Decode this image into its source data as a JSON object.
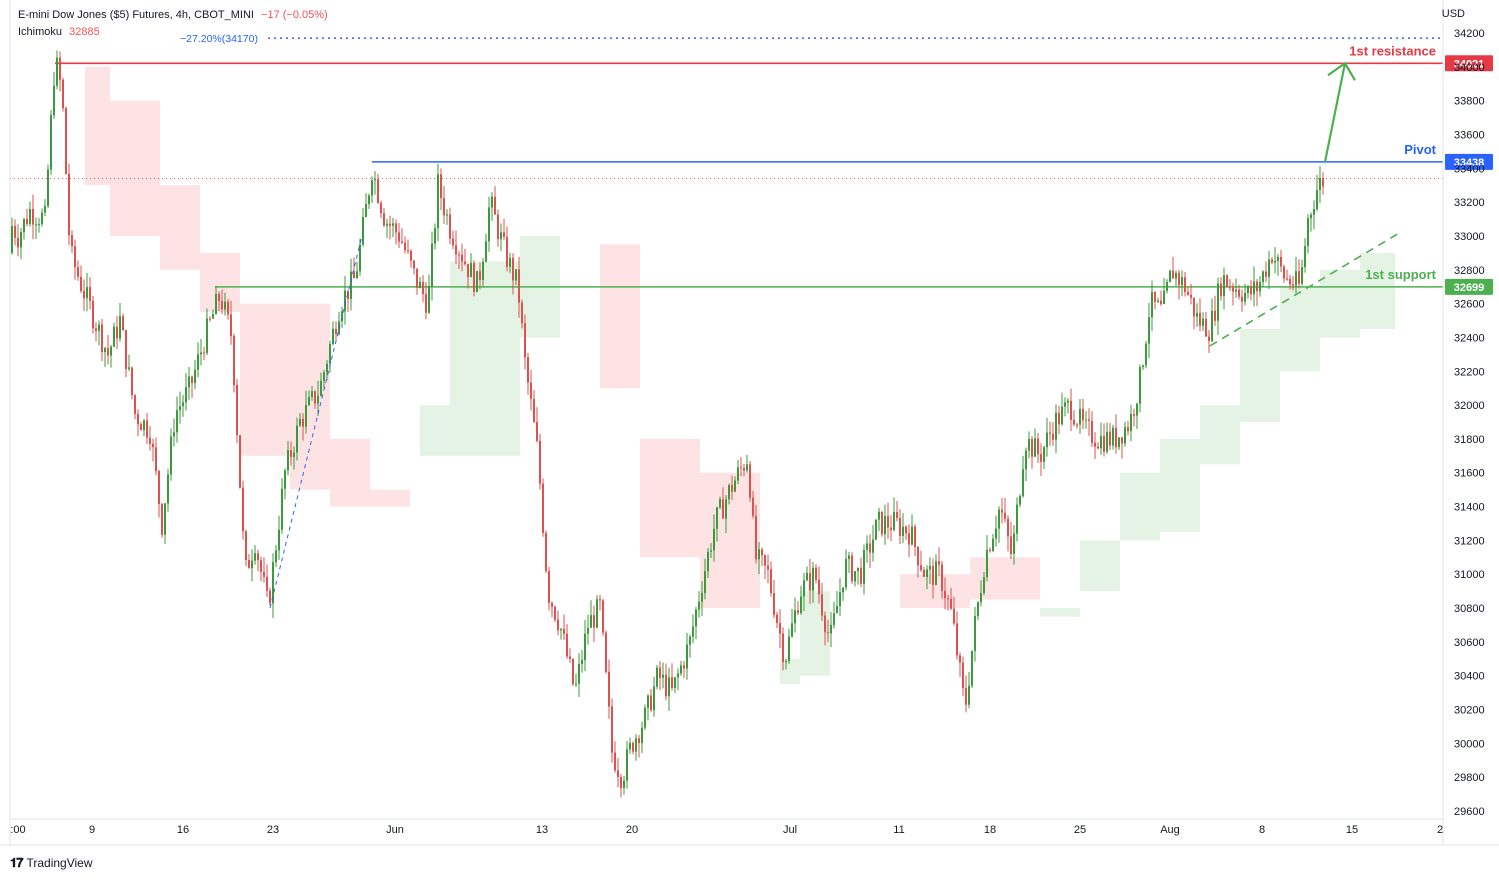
{
  "header": {
    "symbol": "E-mini Dow Jones ($5) Futures, 4h, CBOT_MINI",
    "change": "−17 (−0.05%)",
    "indicator_name": "Ichimoku",
    "indicator_value": "32885",
    "fib_label": "−27.20%(34170)"
  },
  "currency": "USD",
  "brand": "TradingView",
  "colors": {
    "up": "#26a69a",
    "down": "#ef5350",
    "candle_up": "#3b9a3b",
    "candle_down": "#e0504f",
    "resistance": "#e53945",
    "pivot": "#2962ff",
    "support": "#4caf50",
    "cloud_green": "#e4f3e4",
    "cloud_red": "#fde3e3"
  },
  "chart_data": {
    "type": "candlestick",
    "title": "E-mini Dow Jones ($5) Futures, 4h, CBOT_MINI",
    "ylim": [
      29550,
      34350
    ],
    "y_ticks": [
      29600,
      29800,
      30000,
      30200,
      30400,
      30600,
      30800,
      31000,
      31200,
      31400,
      31600,
      31800,
      32000,
      32200,
      32400,
      32600,
      32800,
      33000,
      33200,
      33400,
      33600,
      33800,
      34000,
      34200
    ],
    "x_ticks": [
      ":00",
      "9",
      "16",
      "23",
      "Jun",
      "13",
      "20",
      "Jul",
      "11",
      "18",
      "25",
      "Aug",
      "8",
      "15",
      "2"
    ],
    "last_price": 33340,
    "levels": [
      {
        "name": "1st resistance",
        "value": 34021,
        "label": "34021"
      },
      {
        "name": "Pivot",
        "value": 33438,
        "label": "33438"
      },
      {
        "name": "1st support",
        "value": 32699,
        "label": "32699"
      }
    ],
    "fib_level": 34170,
    "price_path": [
      [
        0,
        32900
      ],
      [
        8,
        33100
      ],
      [
        18,
        33000
      ],
      [
        30,
        33150
      ],
      [
        45,
        33100
      ],
      [
        55,
        34050
      ],
      [
        62,
        33850
      ],
      [
        70,
        32900
      ],
      [
        82,
        32700
      ],
      [
        95,
        32500
      ],
      [
        108,
        32300
      ],
      [
        120,
        32500
      ],
      [
        135,
        31950
      ],
      [
        150,
        31850
      ],
      [
        162,
        31300
      ],
      [
        175,
        31950
      ],
      [
        190,
        32100
      ],
      [
        205,
        32400
      ],
      [
        220,
        32650
      ],
      [
        232,
        32400
      ],
      [
        245,
        31000
      ],
      [
        255,
        31200
      ],
      [
        268,
        30800
      ],
      [
        285,
        31600
      ],
      [
        300,
        31900
      ],
      [
        320,
        32100
      ],
      [
        340,
        32600
      ],
      [
        355,
        32750
      ],
      [
        362,
        33000
      ],
      [
        372,
        33400
      ],
      [
        385,
        33100
      ],
      [
        400,
        33000
      ],
      [
        415,
        32750
      ],
      [
        428,
        32600
      ],
      [
        438,
        33300
      ],
      [
        450,
        33050
      ],
      [
        465,
        32850
      ],
      [
        478,
        32700
      ],
      [
        490,
        33200
      ],
      [
        505,
        32900
      ],
      [
        518,
        32700
      ],
      [
        525,
        32250
      ],
      [
        538,
        31700
      ],
      [
        548,
        30900
      ],
      [
        560,
        30700
      ],
      [
        575,
        30300
      ],
      [
        588,
        30700
      ],
      [
        600,
        30800
      ],
      [
        612,
        29950
      ],
      [
        622,
        29800
      ],
      [
        632,
        30000
      ],
      [
        645,
        30150
      ],
      [
        658,
        30400
      ],
      [
        672,
        30300
      ],
      [
        690,
        30600
      ],
      [
        700,
        30900
      ],
      [
        715,
        31300
      ],
      [
        730,
        31500
      ],
      [
        748,
        31700
      ],
      [
        755,
        31100
      ],
      [
        768,
        31000
      ],
      [
        785,
        30500
      ],
      [
        800,
        30900
      ],
      [
        815,
        31000
      ],
      [
        830,
        30600
      ],
      [
        845,
        31050
      ],
      [
        860,
        31000
      ],
      [
        878,
        31300
      ],
      [
        895,
        31300
      ],
      [
        910,
        31250
      ],
      [
        925,
        31000
      ],
      [
        940,
        31000
      ],
      [
        952,
        30750
      ],
      [
        965,
        30200
      ],
      [
        975,
        30700
      ],
      [
        985,
        31100
      ],
      [
        1000,
        31400
      ],
      [
        1012,
        31100
      ],
      [
        1025,
        31800
      ],
      [
        1040,
        31700
      ],
      [
        1055,
        31900
      ],
      [
        1070,
        32000
      ],
      [
        1085,
        31850
      ],
      [
        1100,
        31800
      ],
      [
        1115,
        31800
      ],
      [
        1130,
        31900
      ],
      [
        1140,
        32150
      ],
      [
        1150,
        32600
      ],
      [
        1162,
        32550
      ],
      [
        1172,
        32800
      ],
      [
        1185,
        32700
      ],
      [
        1198,
        32500
      ],
      [
        1210,
        32450
      ],
      [
        1222,
        32750
      ],
      [
        1235,
        32700
      ],
      [
        1248,
        32650
      ],
      [
        1258,
        32700
      ],
      [
        1272,
        32900
      ],
      [
        1285,
        32750
      ],
      [
        1300,
        32700
      ],
      [
        1308,
        33100
      ],
      [
        1318,
        33300
      ],
      [
        1325,
        33340
      ]
    ],
    "cloud": {
      "green": [
        [
          130,
          33300,
          33200
        ],
        [
          145,
          33280,
          33150
        ],
        [
          420,
          32000,
          31700
        ],
        [
          450,
          32850,
          31700
        ],
        [
          520,
          33000,
          32400
        ],
        [
          560,
          32900,
          32200
        ],
        [
          780,
          30500,
          30350
        ],
        [
          800,
          30900,
          30400
        ],
        [
          830,
          31050,
          30700
        ],
        [
          1040,
          30800,
          30750
        ],
        [
          1080,
          31200,
          30900
        ],
        [
          1120,
          31600,
          31200
        ],
        [
          1160,
          31800,
          31250
        ],
        [
          1200,
          32000,
          31650
        ],
        [
          1240,
          32450,
          31900
        ],
        [
          1280,
          32700,
          32200
        ],
        [
          1320,
          32800,
          32400
        ],
        [
          1360,
          32900,
          32450
        ],
        [
          1395,
          33050,
          32700
        ]
      ],
      "red": [
        [
          85,
          34000,
          33300
        ],
        [
          110,
          33800,
          33000
        ],
        [
          160,
          33300,
          32800
        ],
        [
          200,
          32900,
          32550
        ],
        [
          240,
          32600,
          31700
        ],
        [
          290,
          32600,
          31500
        ],
        [
          330,
          31800,
          31400
        ],
        [
          370,
          31500,
          31400
        ],
        [
          410,
          31650,
          31550
        ],
        [
          600,
          32950,
          32100
        ],
        [
          640,
          31800,
          31100
        ],
        [
          700,
          31600,
          30800
        ],
        [
          760,
          31500,
          30400
        ],
        [
          900,
          31000,
          30800
        ],
        [
          970,
          31100,
          30850
        ],
        [
          1040,
          30750,
          30600
        ]
      ]
    },
    "support_trendline": [
      [
        1210,
        32350
      ],
      [
        1400,
        33020
      ]
    ],
    "rally_trendline": [
      [
        270,
        30800
      ],
      [
        362,
        33000
      ]
    ],
    "projection_arrow": [
      [
        1325,
        33438
      ],
      [
        1345,
        34021
      ]
    ]
  }
}
